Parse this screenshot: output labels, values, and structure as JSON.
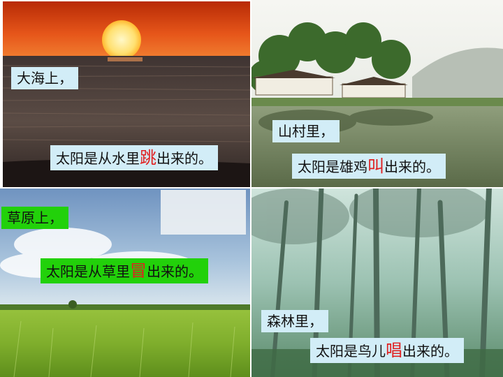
{
  "slide": {
    "colors": {
      "label_blue": "#d2edf7",
      "label_green": "#22d10a",
      "highlight": "#e02020"
    },
    "speaker_icon": "speaker-icon",
    "panels": [
      {
        "id": "sea",
        "place": "大海上，",
        "pre": "太阳是从水里",
        "verb": "跳",
        "post": "出来的。"
      },
      {
        "id": "village",
        "place": "山村里，",
        "pre": "太阳是雄鸡",
        "verb": "叫",
        "post": "出来的。"
      },
      {
        "id": "grassland",
        "place": "草原上，",
        "pre": "太阳是从草里",
        "verb": "冒",
        "post": "出来的。"
      },
      {
        "id": "forest",
        "place": "森林里，",
        "pre": "太阳是鸟儿",
        "verb": "唱",
        "post": "出来的。"
      }
    ]
  }
}
